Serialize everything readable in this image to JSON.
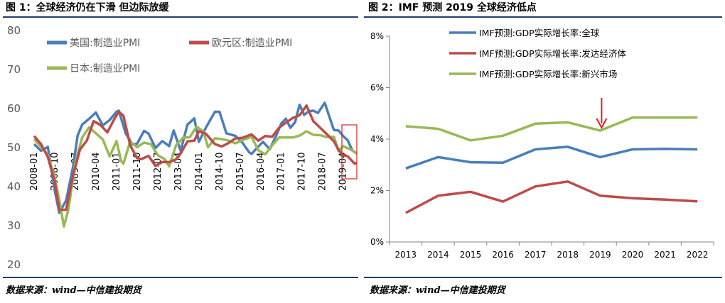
{
  "left": {
    "title": "图 1：全球经济仍在下滑 但边际放缓",
    "source": "数据来源：wind—中信建投期货"
  },
  "right": {
    "title": "图 2：IMF 预测 2019 全球经济低点",
    "source": "数据来源：wind—中信建投期货"
  },
  "colors": {
    "blue": "#4a7ebb",
    "red": "#be4b48",
    "green": "#98b954",
    "rule": "#1f3f6e",
    "highlight": "#e02020"
  },
  "chart_data": [
    {
      "type": "line",
      "ylim": [
        20,
        80
      ],
      "yticks": [
        20,
        30,
        40,
        50,
        60,
        70,
        80
      ],
      "xlim": [
        "2008-01",
        "2019-10"
      ],
      "xticks": [
        "2008-01",
        "2008-10",
        "2009-07",
        "2010-04",
        "2011-01",
        "2011-10",
        "2012-07",
        "2013-04",
        "2014-01",
        "2014-10",
        "2015-07",
        "2016-04",
        "2017-01",
        "2017-10",
        "2018-07",
        "2019-04"
      ],
      "legend": [
        "美国:制造业PMI",
        "欧元区:制造业PMI",
        "日本:制造业PMI"
      ],
      "series": [
        {
          "name": "美国:制造业PMI",
          "color": "blue",
          "points": [
            [
              "2008-01",
              50.7
            ],
            [
              "2008-04",
              49.0
            ],
            [
              "2008-07",
              50.0
            ],
            [
              "2008-10",
              38.9
            ],
            [
              "2008-12",
              33.1
            ],
            [
              "2009-03",
              36.3
            ],
            [
              "2009-06",
              44.8
            ],
            [
              "2009-08",
              52.9
            ],
            [
              "2009-10",
              55.7
            ],
            [
              "2010-01",
              57.2
            ],
            [
              "2010-04",
              58.8
            ],
            [
              "2010-07",
              55.5
            ],
            [
              "2010-10",
              56.9
            ],
            [
              "2011-01",
              59.0
            ],
            [
              "2011-02",
              59.3
            ],
            [
              "2011-05",
              53.5
            ],
            [
              "2011-08",
              50.6
            ],
            [
              "2011-10",
              50.8
            ],
            [
              "2012-01",
              54.1
            ],
            [
              "2012-03",
              53.4
            ],
            [
              "2012-06",
              49.7
            ],
            [
              "2012-09",
              51.5
            ],
            [
              "2012-12",
              50.2
            ],
            [
              "2013-02",
              54.2
            ],
            [
              "2013-05",
              49.0
            ],
            [
              "2013-08",
              55.7
            ],
            [
              "2013-11",
              57.3
            ],
            [
              "2014-01",
              51.3
            ],
            [
              "2014-04",
              54.9
            ],
            [
              "2014-08",
              59.0
            ],
            [
              "2014-10",
              59.0
            ],
            [
              "2015-01",
              53.5
            ],
            [
              "2015-05",
              52.8
            ],
            [
              "2015-08",
              51.1
            ],
            [
              "2015-11",
              48.6
            ],
            [
              "2015-12",
              48.2
            ],
            [
              "2016-02",
              49.5
            ],
            [
              "2016-05",
              51.3
            ],
            [
              "2016-08",
              49.4
            ],
            [
              "2016-11",
              53.2
            ],
            [
              "2017-01",
              56.0
            ],
            [
              "2017-03",
              57.2
            ],
            [
              "2017-05",
              54.9
            ],
            [
              "2017-07",
              56.3
            ],
            [
              "2017-09",
              60.8
            ],
            [
              "2017-11",
              58.2
            ],
            [
              "2018-01",
              59.1
            ],
            [
              "2018-03",
              59.3
            ],
            [
              "2018-05",
              58.7
            ],
            [
              "2018-08",
              61.3
            ],
            [
              "2018-10",
              57.7
            ],
            [
              "2018-12",
              54.3
            ],
            [
              "2019-02",
              54.2
            ],
            [
              "2019-04",
              52.8
            ],
            [
              "2019-06",
              51.7
            ],
            [
              "2019-08",
              49.1
            ],
            [
              "2019-10",
              48.3
            ]
          ]
        },
        {
          "name": "欧元区:制造业PMI",
          "color": "red",
          "points": [
            [
              "2008-01",
              52.8
            ],
            [
              "2008-04",
              50.7
            ],
            [
              "2008-07",
              47.4
            ],
            [
              "2008-10",
              41.1
            ],
            [
              "2008-12",
              33.9
            ],
            [
              "2009-03",
              33.9
            ],
            [
              "2009-06",
              42.6
            ],
            [
              "2009-09",
              49.3
            ],
            [
              "2009-12",
              51.6
            ],
            [
              "2010-03",
              56.6
            ],
            [
              "2010-06",
              55.6
            ],
            [
              "2010-09",
              53.7
            ],
            [
              "2010-12",
              57.1
            ],
            [
              "2011-02",
              59.0
            ],
            [
              "2011-04",
              58.0
            ],
            [
              "2011-07",
              50.4
            ],
            [
              "2011-10",
              47.1
            ],
            [
              "2011-12",
              46.9
            ],
            [
              "2012-03",
              47.7
            ],
            [
              "2012-06",
              45.1
            ],
            [
              "2012-09",
              46.1
            ],
            [
              "2012-12",
              46.1
            ],
            [
              "2013-03",
              46.8
            ],
            [
              "2013-05",
              48.3
            ],
            [
              "2013-08",
              51.4
            ],
            [
              "2013-11",
              51.6
            ],
            [
              "2014-01",
              54.0
            ],
            [
              "2014-04",
              53.4
            ],
            [
              "2014-08",
              50.7
            ],
            [
              "2014-11",
              50.1
            ],
            [
              "2015-02",
              51.0
            ],
            [
              "2015-05",
              52.2
            ],
            [
              "2015-08",
              52.3
            ],
            [
              "2015-12",
              53.2
            ],
            [
              "2016-03",
              51.6
            ],
            [
              "2016-06",
              52.8
            ],
            [
              "2016-09",
              52.6
            ],
            [
              "2016-12",
              54.9
            ],
            [
              "2017-03",
              56.2
            ],
            [
              "2017-06",
              57.4
            ],
            [
              "2017-09",
              58.1
            ],
            [
              "2017-12",
              60.6
            ],
            [
              "2018-03",
              56.6
            ],
            [
              "2018-06",
              54.9
            ],
            [
              "2018-09",
              53.2
            ],
            [
              "2018-12",
              51.4
            ],
            [
              "2019-02",
              49.3
            ],
            [
              "2019-04",
              47.9
            ],
            [
              "2019-06",
              47.6
            ],
            [
              "2019-09",
              45.7
            ],
            [
              "2019-10",
              45.9
            ]
          ]
        },
        {
          "name": "日本:制造业PMI",
          "color": "green",
          "points": [
            [
              "2008-01",
              52.0
            ],
            [
              "2008-04",
              50.0
            ],
            [
              "2008-07",
              48.0
            ],
            [
              "2008-10",
              42.2
            ],
            [
              "2008-12",
              36.4
            ],
            [
              "2009-02",
              29.6
            ],
            [
              "2009-04",
              34.0
            ],
            [
              "2009-07",
              46.0
            ],
            [
              "2009-10",
              52.4
            ],
            [
              "2010-01",
              55.0
            ],
            [
              "2010-04",
              53.5
            ],
            [
              "2010-07",
              51.9
            ],
            [
              "2010-10",
              47.6
            ],
            [
              "2011-01",
              51.5
            ],
            [
              "2011-03",
              46.4
            ],
            [
              "2011-04",
              45.7
            ],
            [
              "2011-07",
              51.4
            ],
            [
              "2011-10",
              49.9
            ],
            [
              "2012-01",
              51.1
            ],
            [
              "2012-04",
              50.7
            ],
            [
              "2012-07",
              47.9
            ],
            [
              "2012-10",
              46.9
            ],
            [
              "2012-12",
              45.0
            ],
            [
              "2013-03",
              50.4
            ],
            [
              "2013-06",
              52.3
            ],
            [
              "2013-09",
              52.5
            ],
            [
              "2013-12",
              55.2
            ],
            [
              "2014-03",
              53.9
            ],
            [
              "2014-05",
              49.9
            ],
            [
              "2014-08",
              52.2
            ],
            [
              "2014-11",
              52.0
            ],
            [
              "2015-02",
              51.6
            ],
            [
              "2015-05",
              50.9
            ],
            [
              "2015-08",
              51.7
            ],
            [
              "2015-12",
              52.6
            ],
            [
              "2016-03",
              49.1
            ],
            [
              "2016-06",
              48.1
            ],
            [
              "2016-09",
              50.4
            ],
            [
              "2016-12",
              52.4
            ],
            [
              "2017-03",
              52.4
            ],
            [
              "2017-06",
              52.4
            ],
            [
              "2017-09",
              52.9
            ],
            [
              "2017-12",
              54.0
            ],
            [
              "2018-03",
              53.1
            ],
            [
              "2018-06",
              53.0
            ],
            [
              "2018-09",
              52.5
            ],
            [
              "2018-12",
              52.6
            ],
            [
              "2019-02",
              48.9
            ],
            [
              "2019-04",
              50.2
            ],
            [
              "2019-07",
              49.4
            ],
            [
              "2019-10",
              48.4
            ]
          ]
        }
      ]
    },
    {
      "type": "line",
      "ylim": [
        0,
        8
      ],
      "yticks": [
        "0%",
        "2%",
        "4%",
        "6%",
        "8%"
      ],
      "categories": [
        "2013",
        "2014",
        "2015",
        "2016",
        "2017",
        "2018",
        "2019",
        "2020",
        "2021",
        "2022"
      ],
      "legend": [
        "IMF预测:GDP实际增长率:全球",
        "IMF预测:GDP实际增长率:发达经济体",
        "IMF预测:GDP实际增长率:新兴市场"
      ],
      "series": [
        {
          "name": "IMF预测:GDP实际增长率:全球",
          "color": "blue",
          "values": [
            2.86,
            3.3,
            3.1,
            3.08,
            3.6,
            3.7,
            3.3,
            3.6,
            3.62,
            3.6
          ]
        },
        {
          "name": "IMF预测:GDP实际增长率:发达经济体",
          "color": "red",
          "values": [
            1.13,
            1.8,
            1.95,
            1.57,
            2.16,
            2.35,
            1.8,
            1.7,
            1.65,
            1.58
          ]
        },
        {
          "name": "IMF预测:GDP实际增长率:新兴市场",
          "color": "green",
          "values": [
            4.5,
            4.4,
            3.95,
            4.13,
            4.6,
            4.65,
            4.33,
            4.84,
            4.84,
            4.84
          ]
        }
      ]
    }
  ]
}
